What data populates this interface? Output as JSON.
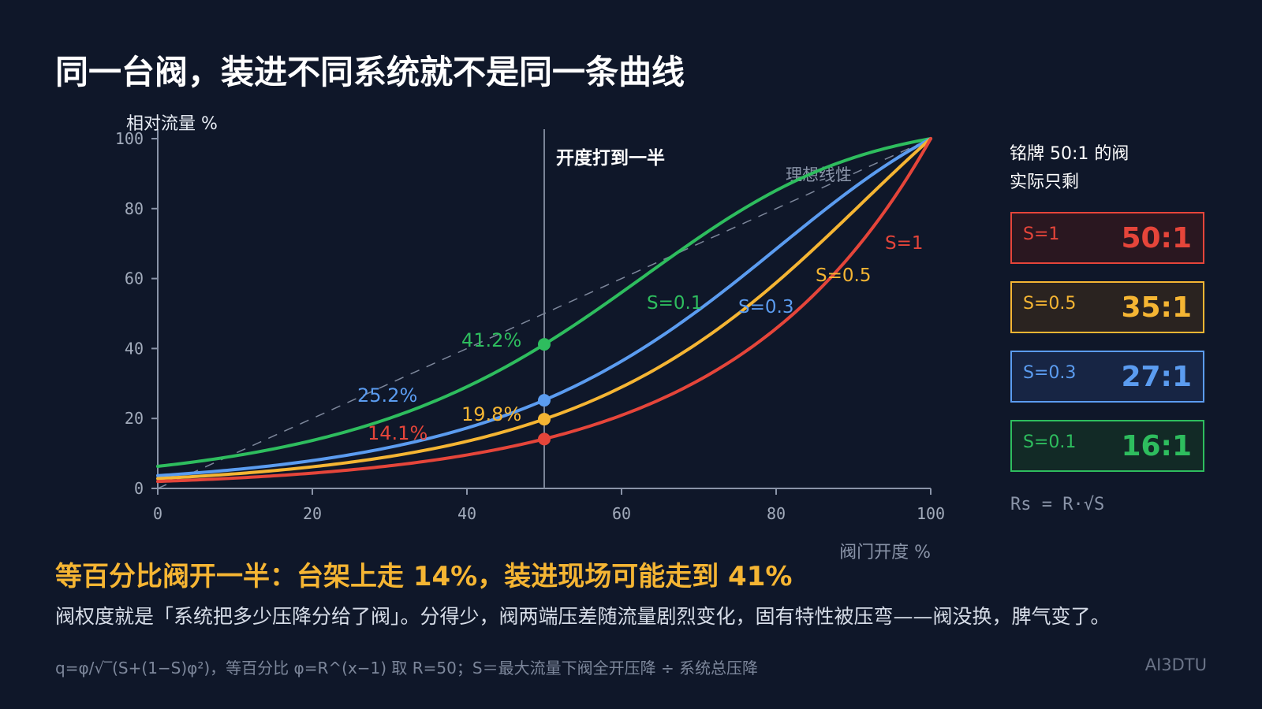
{
  "title": "同一台阀，装进不同系统就不是同一条曲线",
  "colors": {
    "background": "#0f1729",
    "axis": "#8a94a8",
    "tick_text": "#a2abbb",
    "ideal": "#8a94a8",
    "S1": "#e5453a",
    "S05": "#f5b533",
    "S03": "#5b9cf0",
    "S01": "#2ebd5e"
  },
  "chart_data": {
    "type": "line",
    "ylabel": "相对流量 %",
    "xlabel": "阀门开度 %",
    "xlim": [
      0,
      100
    ],
    "ylim": [
      0,
      100
    ],
    "xticks": [
      "0",
      "20",
      "40",
      "60",
      "80",
      "100"
    ],
    "yticks": [
      "0",
      "20",
      "40",
      "60",
      "80",
      "100"
    ],
    "grid": false,
    "vline": {
      "x": 50,
      "label": "开度打到一半"
    },
    "ideal": {
      "label": "理想线性",
      "x": [
        0,
        100
      ],
      "y": [
        0,
        100
      ]
    },
    "series": [
      {
        "name": "S=0.1",
        "S": 0.1,
        "color": "#2ebd5e",
        "x": [
          0,
          10,
          20,
          30,
          40,
          50,
          60,
          70,
          80,
          90,
          100
        ],
        "y": [
          6.3,
          9.0,
          13.5,
          20.3,
          29.6,
          41.2,
          54.2,
          67.4,
          79.8,
          90.6,
          100
        ],
        "point_y": 41.2,
        "point_label": "41.2%",
        "curve_label": "S=0.1"
      },
      {
        "name": "S=0.3",
        "S": 0.3,
        "color": "#5b9cf0",
        "x": [
          0,
          10,
          20,
          30,
          40,
          50,
          60,
          70,
          80,
          90,
          100
        ],
        "y": [
          3.7,
          5.3,
          8.0,
          11.9,
          17.6,
          25.2,
          35.3,
          48.2,
          63.5,
          81.1,
          100
        ],
        "point_y": 25.2,
        "point_label": "25.2%",
        "curve_label": "S=0.3"
      },
      {
        "name": "S=0.5",
        "S": 0.5,
        "color": "#f5b533",
        "x": [
          0,
          10,
          20,
          30,
          40,
          50,
          60,
          70,
          80,
          90,
          100
        ],
        "y": [
          2.8,
          4.2,
          6.2,
          9.3,
          13.7,
          19.8,
          28.2,
          39.8,
          55.2,
          75.5,
          100
        ],
        "point_y": 19.8,
        "point_label": "19.8%",
        "curve_label": "S=0.5"
      },
      {
        "name": "S=1",
        "S": 1,
        "color": "#e5453a",
        "x": [
          0,
          10,
          20,
          30,
          40,
          50,
          60,
          70,
          80,
          90,
          100
        ],
        "y": [
          2.0,
          2.9,
          4.3,
          6.5,
          9.6,
          14.1,
          20.8,
          30.8,
          45.7,
          67.6,
          100
        ],
        "point_y": 14.1,
        "point_label": "14.1%",
        "curve_label": "S=1"
      }
    ]
  },
  "side_panel": {
    "title_line1": "铭牌 50:1 的阀",
    "title_line2": "实际只剩",
    "boxes": [
      {
        "label": "S=1",
        "ratio": "50:1",
        "color": "#e5453a",
        "bg": "#2a1720"
      },
      {
        "label": "S=0.5",
        "ratio": "35:1",
        "color": "#f5b533",
        "bg": "#2a2320"
      },
      {
        "label": "S=0.3",
        "ratio": "27:1",
        "color": "#5b9cf0",
        "bg": "#172544"
      },
      {
        "label": "S=0.1",
        "ratio": "16:1",
        "color": "#2ebd5e",
        "bg": "#122a26"
      }
    ],
    "formula": "Rs = R·√S"
  },
  "headline": "等百分比阀开一半：台架上走 14%，装进现场可能走到 41%",
  "body": "阀权度就是「系统把多少压降分给了阀」。分得少，阀两端压差随流量剧烈变化，固有特性被压弯——阀没换，脾气变了。",
  "footnote": "q=φ/√‾(S+(1−S)φ²)，等百分比 φ=R^(x−1) 取 R=50；S＝最大流量下阀全开压降 ÷ 系统总压降",
  "brand": "AI3DTU"
}
